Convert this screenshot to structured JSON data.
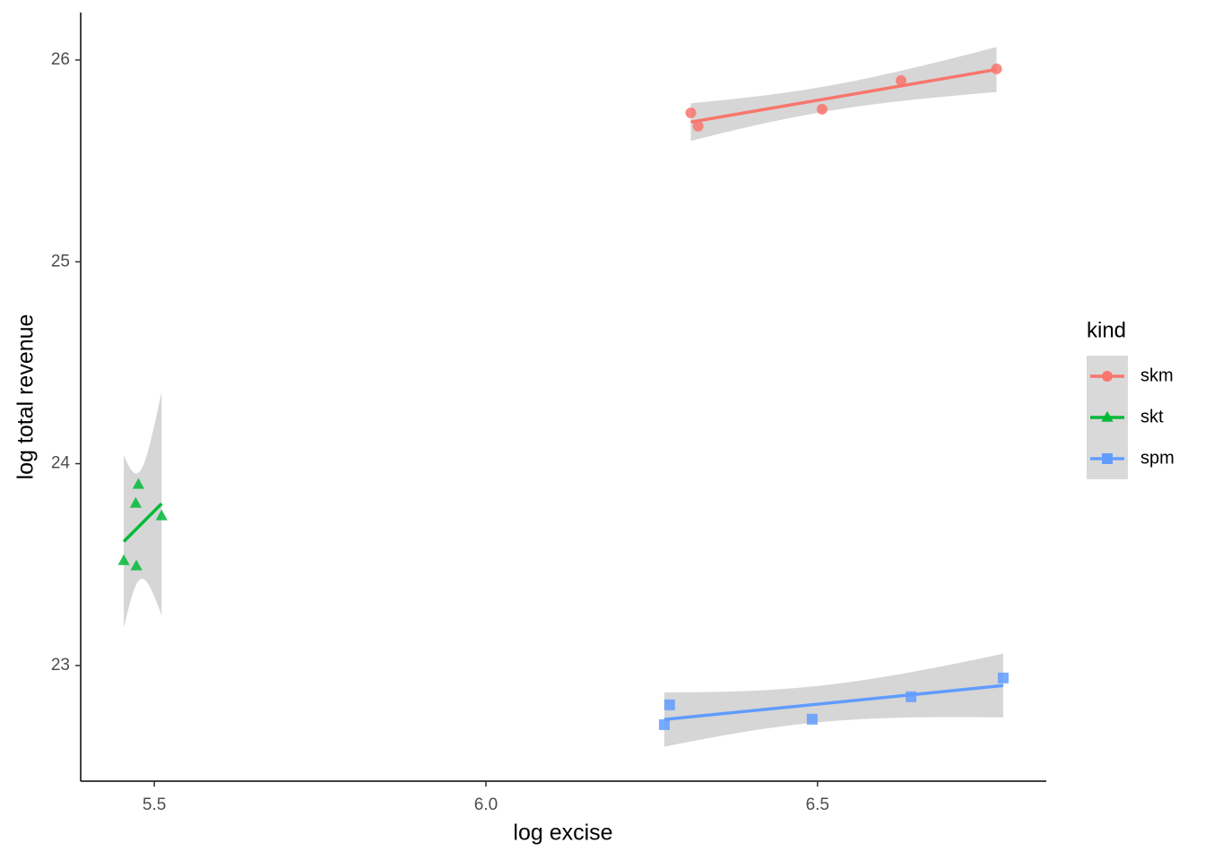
{
  "chart_data": {
    "type": "scatter",
    "x_label": "log excise",
    "y_label": "log total revenue",
    "legend_title": "kind",
    "legend": "right",
    "trend": "linear",
    "band": true,
    "xlim": [
      5.389,
      6.845
    ],
    "ylim": [
      22.427,
      26.235
    ],
    "xticks": [
      5.5,
      {
        "value": 6,
        "label": "6.0"
      },
      6.5
    ],
    "yticks": [
      23,
      24,
      25,
      26
    ],
    "series": [
      {
        "name": "skm",
        "color": "#F8766D",
        "shape": "circle",
        "x": [
          6.309,
          6.32,
          6.507,
          6.626,
          6.77
        ],
        "values": [
          25.738,
          25.672,
          25.756,
          25.898,
          25.956
        ]
      },
      {
        "name": "skt",
        "color": "#00BA38",
        "shape": "triangle",
        "x": [
          5.454,
          5.473,
          5.472,
          5.476,
          5.511
        ],
        "values": [
          23.519,
          23.493,
          23.803,
          23.897,
          23.741
        ]
      },
      {
        "name": "spm",
        "color": "#619CFF",
        "shape": "square",
        "x": [
          6.269,
          6.277,
          6.492,
          6.641,
          6.78
        ],
        "values": [
          22.707,
          22.805,
          22.734,
          22.845,
          22.938
        ]
      }
    ]
  }
}
